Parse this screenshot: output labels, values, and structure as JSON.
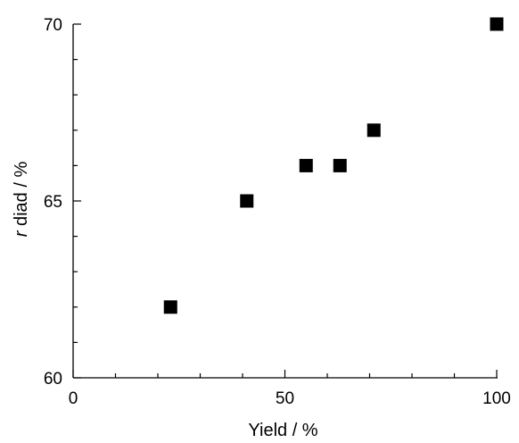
{
  "chart_data": {
    "type": "scatter",
    "title": "",
    "xlabel": "Yield / %",
    "ylabel_prefix": "r",
    "ylabel_rest": " diad / %",
    "xlim": [
      0,
      100
    ],
    "ylim": [
      60,
      70
    ],
    "x_ticks": [
      "0",
      "50",
      "100"
    ],
    "y_ticks": [
      "60",
      "65",
      "70"
    ],
    "x_minor_step": 10,
    "y_minor_step": 1,
    "grid": false,
    "marker": "filled-square",
    "marker_color": "#000000",
    "series": [
      {
        "points": [
          {
            "x": 23,
            "y": 62
          },
          {
            "x": 41,
            "y": 65
          },
          {
            "x": 55,
            "y": 66
          },
          {
            "x": 63,
            "y": 66
          },
          {
            "x": 71,
            "y": 67
          },
          {
            "x": 100,
            "y": 70
          }
        ]
      }
    ]
  }
}
